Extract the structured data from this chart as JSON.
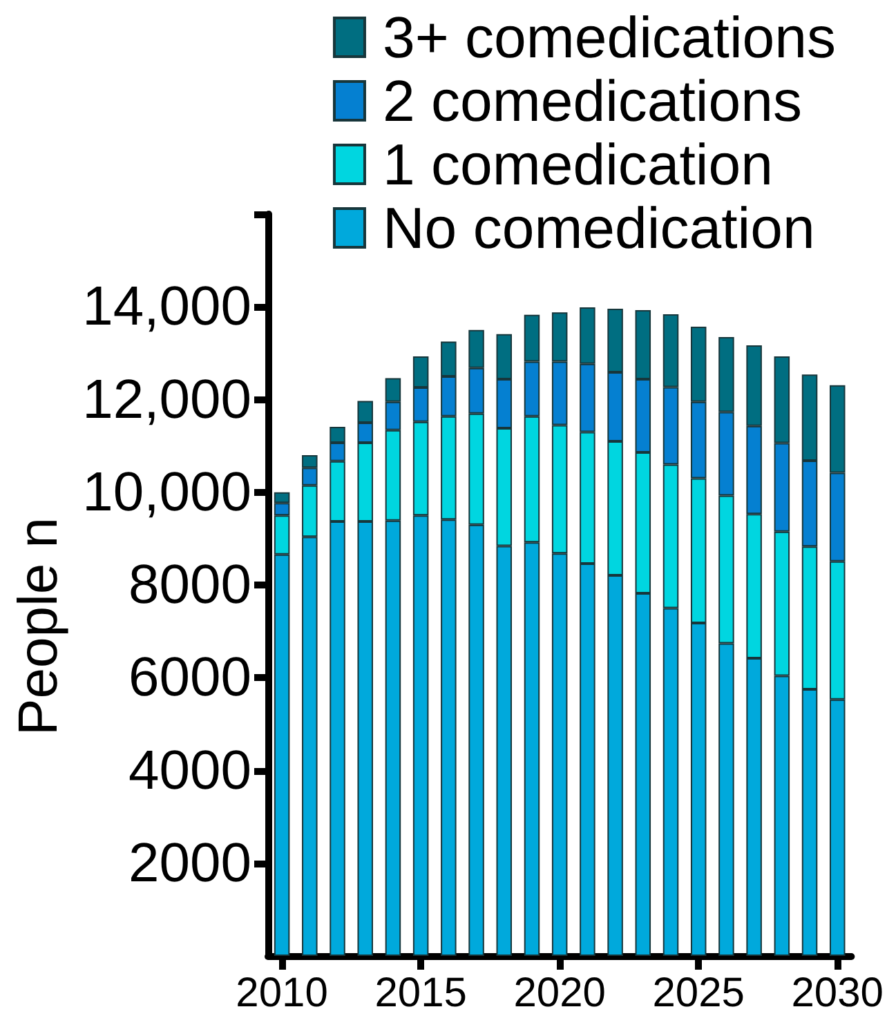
{
  "chart_data": {
    "type": "bar",
    "stacked": true,
    "ylabel": "People n",
    "categories": [
      "2010",
      null,
      null,
      null,
      null,
      "2015",
      null,
      null,
      null,
      null,
      "2020",
      null,
      null,
      null,
      null,
      "2025",
      null,
      null,
      null,
      null,
      "2030"
    ],
    "ylim": [
      0,
      16000
    ],
    "yticks": [
      2000,
      4000,
      6000,
      8000,
      {
        "value": 10000,
        "label": "10,000"
      },
      {
        "value": 12000,
        "label": "12,000"
      },
      {
        "value": 14000,
        "label": "14,000"
      },
      {
        "value": 16000,
        "label": null
      }
    ],
    "grid": false,
    "legend": "top right",
    "series": [
      {
        "name": "No comedication",
        "color": "#00a9dc",
        "values": [
          8660,
          9040,
          9370,
          9370,
          9390,
          9500,
          9410,
          9300,
          8840,
          8920,
          8680,
          8460,
          8210,
          7820,
          7500,
          7180,
          6740,
          6420,
          6040,
          5750,
          5530
        ]
      },
      {
        "name": "1 comedication",
        "color": "#00d6e0",
        "values": [
          840,
          1110,
          1300,
          1700,
          1950,
          2020,
          2230,
          2400,
          2540,
          2720,
          2770,
          2840,
          2890,
          3040,
          3100,
          3120,
          3190,
          3110,
          3110,
          3080,
          2980
        ]
      },
      {
        "name": "2 comedications",
        "color": "#0580d1",
        "values": [
          270,
          380,
          400,
          430,
          610,
          740,
          860,
          980,
          1060,
          1180,
          1370,
          1470,
          1490,
          1580,
          1670,
          1650,
          1800,
          1900,
          1910,
          1850,
          1910
        ]
      },
      {
        "name": "3+ comedications",
        "color": "#006e81",
        "values": [
          230,
          270,
          340,
          470,
          510,
          670,
          750,
          820,
          970,
          1010,
          1060,
          1220,
          1370,
          1490,
          1570,
          1620,
          1620,
          1740,
          1870,
          1860,
          1890
        ]
      }
    ]
  }
}
